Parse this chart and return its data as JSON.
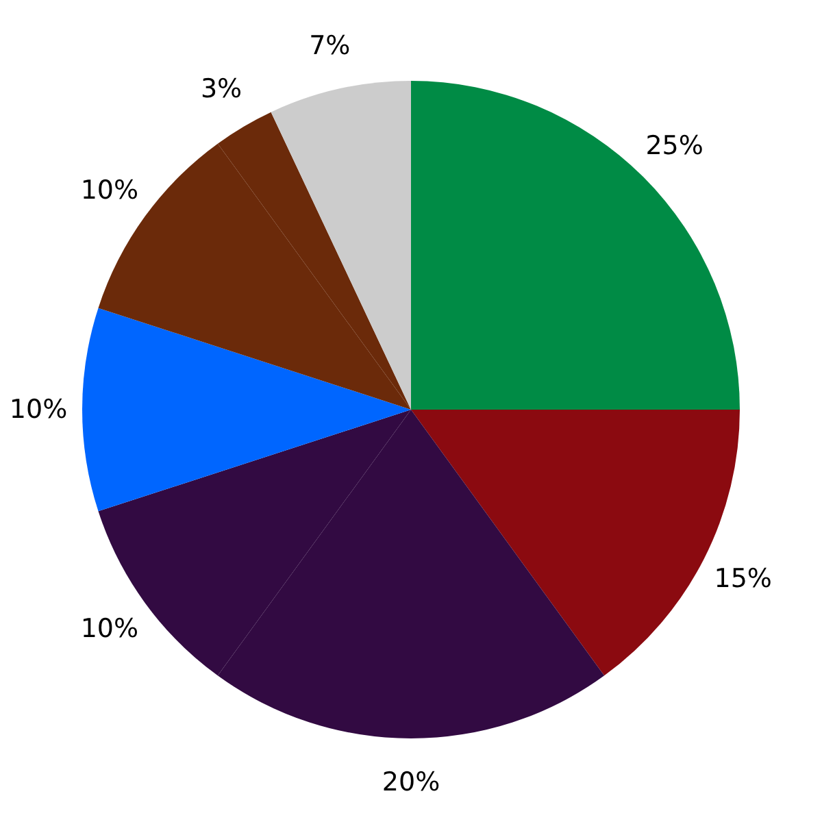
{
  "chart_data": {
    "type": "pie",
    "categories": [
      null,
      null,
      null,
      null,
      null,
      null,
      null,
      null
    ],
    "values": [
      25,
      15,
      20,
      10,
      10,
      10,
      3,
      7
    ],
    "value_labels": [
      "25%",
      "15%",
      "20%",
      "10%",
      "10%",
      "10%",
      "3%",
      "7%"
    ],
    "colors": [
      "#008b45",
      "#8b0a10",
      "#320a42",
      "#320a42",
      "#0066ff",
      "#6b2a0a",
      "#6b2a0a",
      "#cccccc"
    ]
  }
}
